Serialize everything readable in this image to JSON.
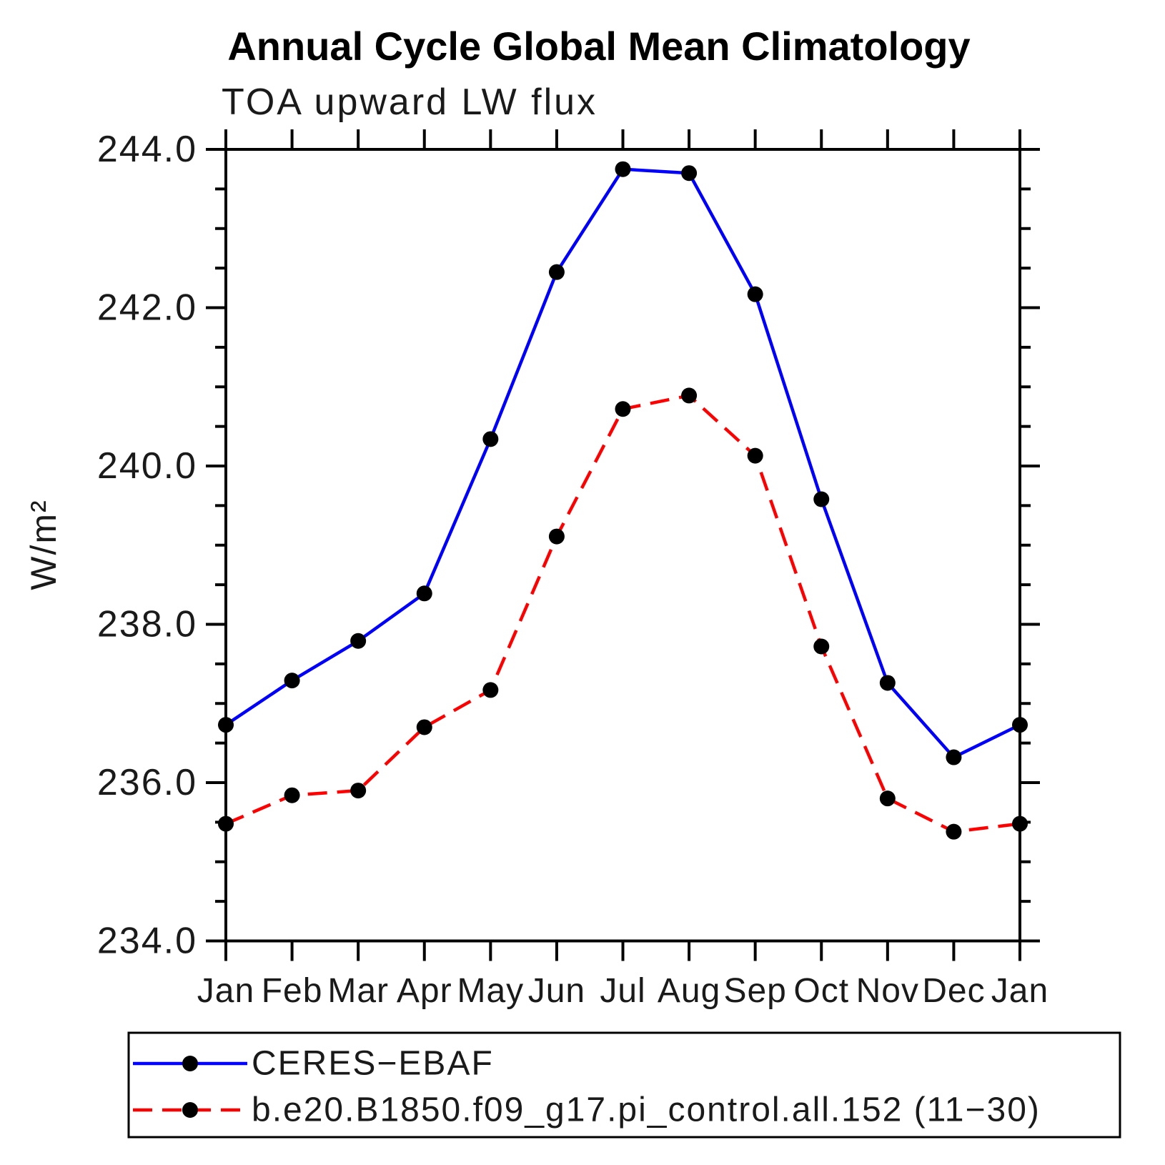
{
  "chart_data": {
    "type": "line",
    "title": "Annual Cycle Global Mean Climatology",
    "subtitle": "TOA upward LW flux",
    "ylabel": "W/m²",
    "ylim": [
      234.0,
      244.0
    ],
    "ytick_major_interval": 2.0,
    "ytick_minor_interval": 0.5,
    "ytick_labels": [
      "234.0",
      "236.0",
      "238.0",
      "240.0",
      "242.0",
      "244.0"
    ],
    "x_labels": [
      "Jan",
      "Feb",
      "Mar",
      "Apr",
      "May",
      "Jun",
      "Jul",
      "Aug",
      "Sep",
      "Oct",
      "Nov",
      "Dec",
      "Jan"
    ],
    "grid": false,
    "legend_position": "bottom",
    "series": [
      {
        "name": "CERES−EBAF",
        "color": "#0000ff",
        "style": "solid",
        "marker": "circle",
        "marker_color": "#000000",
        "values": [
          236.73,
          237.29,
          237.79,
          238.39,
          240.34,
          242.45,
          243.75,
          243.7,
          242.17,
          239.58,
          237.26,
          236.32,
          236.73
        ]
      },
      {
        "name": "b.e20.B1850.f09_g17.pi_control.all.152 (11−30)",
        "color": "#ff0000",
        "style": "dashed",
        "marker": "circle",
        "marker_color": "#000000",
        "values": [
          235.48,
          235.84,
          235.9,
          236.7,
          237.17,
          239.11,
          240.72,
          240.89,
          240.13,
          237.72,
          235.8,
          235.38,
          235.48
        ]
      }
    ]
  }
}
